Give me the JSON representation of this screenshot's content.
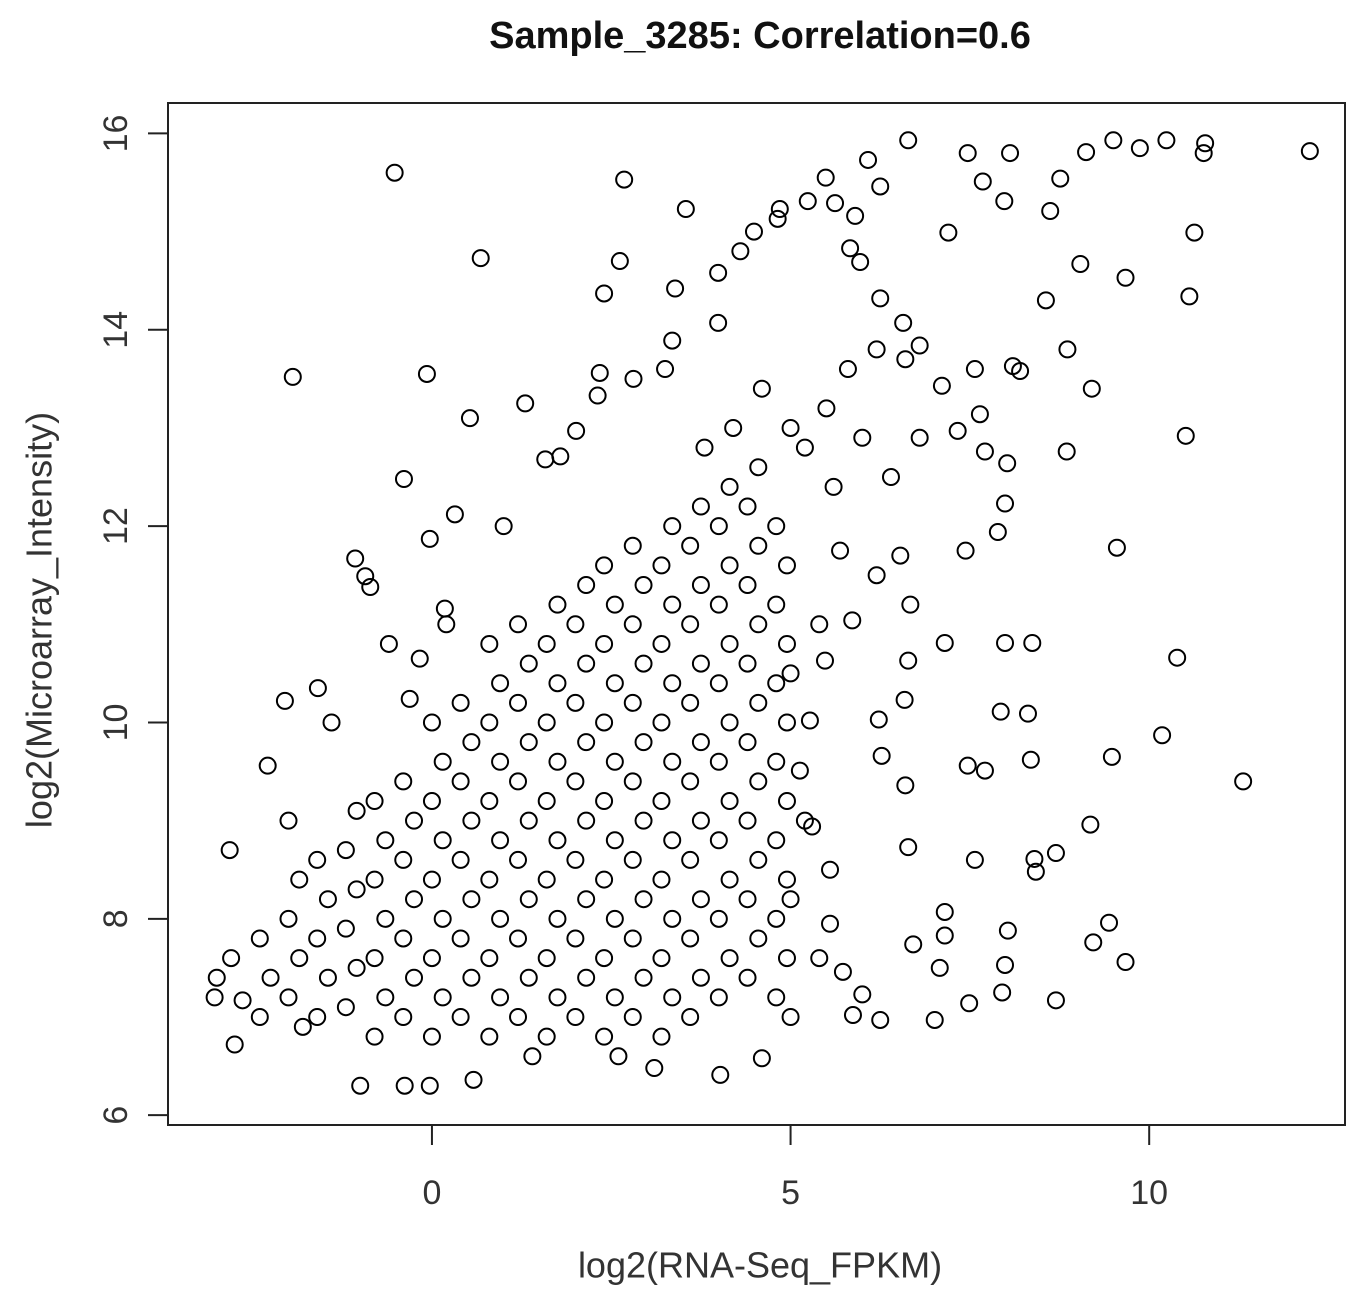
{
  "chart_data": {
    "type": "scatter",
    "title": "Sample_3285: Correlation=0.6",
    "x_label": "log2(RNA-Seq_FPKM)",
    "y_label": "log2(Microarray_Intensity)",
    "xlim": [
      -3.68,
      12.73
    ],
    "ylim": [
      5.9,
      16.31
    ],
    "xticks": [
      0,
      5,
      10
    ],
    "yticks": [
      6,
      8,
      10,
      12,
      14,
      16
    ],
    "color": "#000000",
    "x": [
      -0.52,
      0.68,
      -1.94,
      -0.07,
      2.68,
      3.54,
      2.62,
      2.4,
      0.53,
      1.3,
      -0.39,
      0.32,
      12.24,
      11.31,
      10.18,
      10.39,
      10.51,
      9.55,
      9.48,
      9.18,
      8.7,
      9.44,
      9.67,
      9.22,
      8.7,
      8.85,
      8.86,
      9.2,
      9.67,
      10.63,
      10.56,
      10.76,
      10.78,
      10.24,
      9.87,
      9.5,
      9.12,
      9.04,
      8.4,
      8.42,
      8.35,
      8.31,
      8.37,
      7.99,
      7.93,
      7.47,
      7.15,
      7.44,
      7.57,
      7.71,
      7.15,
      7.15,
      7.08,
      7.01,
      7.49,
      7.95,
      7.99,
      8.03,
      6.6,
      6.64,
      6.71,
      6.27,
      6.23,
      6.59,
      6.64,
      6.67,
      5.87,
      7.98,
      8.06,
      7.47,
      7.99,
      8.02,
      7.89,
      7.71,
      7.64,
      7.57,
      8.1,
      8.2,
      8.56,
      8.62,
      8.76,
      7.68,
      7.2,
      6.64,
      6.08,
      6.25,
      5.62,
      5.49,
      5.24,
      4.85,
      4.82,
      4.49,
      4.3,
      3.99,
      3.99,
      3.39,
      3.35,
      3.25,
      2.81,
      2.34,
      2.31,
      2.01,
      1.79,
      1.58,
      5.9,
      5.83,
      5.97,
      6.25,
      6.57,
      6.8,
      7.11,
      7.33,
      6.53,
      5.69,
      5.86,
      5.48,
      5.27,
      5.13,
      5.3,
      5.55,
      5.55,
      5.73,
      6.0,
      6.25,
      4.6,
      4.02,
      3.1,
      0.58,
      -1.0,
      -0.38,
      -0.03,
      -2.82,
      -2.64,
      -3.03,
      -2.75,
      -2.29,
      -2.05,
      -1.59,
      -1.07,
      -0.93,
      -0.86,
      -0.31,
      -0.17,
      -0.03,
      0.18,
      5.5,
      5.8,
      6.2,
      6.6,
      5.2,
      5.6,
      6.0,
      6.4,
      5.0,
      4.6,
      4.2,
      3.8,
      6.8,
      6.2,
      5.4,
      5.0,
      5.2,
      5.0,
      5.4,
      5.0,
      1.0,
      0.2,
      -0.6,
      -1.4,
      -2.0,
      -2.8,
      -3.0,
      2.6,
      1.4,
      -1.8,
      -2.4,
      -2.25,
      -2.4,
      -2.0,
      -1.85,
      -2.0,
      -1.85,
      -1.6,
      -1.45,
      -1.6,
      -1.45,
      -1.6,
      -1.2,
      -1.05,
      -1.2,
      -1.05,
      -1.2,
      -1.05,
      -0.8,
      -0.65,
      -0.8,
      -0.65,
      -0.8,
      -0.65,
      -0.8,
      -0.4,
      -0.25,
      -0.4,
      -0.25,
      -0.4,
      -0.25,
      -0.4,
      0,
      0.15,
      0,
      0.15,
      0,
      0.15,
      0,
      0.15,
      0,
      0.4,
      0.55,
      0.4,
      0.55,
      0.4,
      0.55,
      0.4,
      0.55,
      0.4,
      0.8,
      0.95,
      0.8,
      0.95,
      0.8,
      0.95,
      0.8,
      0.95,
      0.8,
      0.95,
      0.8,
      1.2,
      1.35,
      1.2,
      1.35,
      1.2,
      1.35,
      1.2,
      1.35,
      1.2,
      1.35,
      1.2,
      1.6,
      1.75,
      1.6,
      1.75,
      1.6,
      1.75,
      1.6,
      1.75,
      1.6,
      1.75,
      1.6,
      1.75,
      2.0,
      2.15,
      2.0,
      2.15,
      2.0,
      2.15,
      2.0,
      2.15,
      2.0,
      2.15,
      2.0,
      2.15,
      2.4,
      2.55,
      2.4,
      2.55,
      2.4,
      2.55,
      2.4,
      2.55,
      2.4,
      2.55,
      2.4,
      2.55,
      2.4,
      2.8,
      2.95,
      2.8,
      2.95,
      2.8,
      2.95,
      2.8,
      2.95,
      2.8,
      2.95,
      2.8,
      2.95,
      2.8,
      3.2,
      3.35,
      3.2,
      3.35,
      3.2,
      3.35,
      3.2,
      3.35,
      3.2,
      3.35,
      3.2,
      3.35,
      3.2,
      3.35,
      3.6,
      3.75,
      3.6,
      3.75,
      3.6,
      3.75,
      3.6,
      3.75,
      3.6,
      3.75,
      3.6,
      3.75,
      3.6,
      3.75,
      4.0,
      4.15,
      4.0,
      4.15,
      4.0,
      4.15,
      4.0,
      4.15,
      4.0,
      4.15,
      4.0,
      4.15,
      4.0,
      4.15,
      4.4,
      4.55,
      4.4,
      4.55,
      4.4,
      4.55,
      4.4,
      4.55,
      4.4,
      4.55,
      4.4,
      4.55,
      4.4,
      4.55,
      4.8,
      4.95,
      4.8,
      4.95,
      4.8,
      4.95,
      4.8,
      4.95,
      4.8,
      4.95,
      4.8,
      4.95,
      4.8
    ],
    "values": [
      15.6,
      14.73,
      13.52,
      13.55,
      15.53,
      15.23,
      14.7,
      14.37,
      13.1,
      13.25,
      12.48,
      12.12,
      15.82,
      9.4,
      9.87,
      10.66,
      12.92,
      11.78,
      9.65,
      8.96,
      8.67,
      7.96,
      7.56,
      7.76,
      7.17,
      12.76,
      13.8,
      13.4,
      14.53,
      14.99,
      14.34,
      15.8,
      15.9,
      15.93,
      15.85,
      15.93,
      15.81,
      14.67,
      8.61,
      8.48,
      9.62,
      10.09,
      10.81,
      10.81,
      10.11,
      9.56,
      10.81,
      11.75,
      8.6,
      9.51,
      8.07,
      7.83,
      7.5,
      6.97,
      7.14,
      7.25,
      7.53,
      7.88,
      9.36,
      8.73,
      7.74,
      9.66,
      10.03,
      10.23,
      10.63,
      11.2,
      7.02,
      15.31,
      15.8,
      15.8,
      12.23,
      12.64,
      11.94,
      12.76,
      13.14,
      13.6,
      13.63,
      13.58,
      14.3,
      15.21,
      15.54,
      15.51,
      14.99,
      15.93,
      15.73,
      15.46,
      15.29,
      15.55,
      15.31,
      15.23,
      15.13,
      15.0,
      14.8,
      14.58,
      14.07,
      14.42,
      13.89,
      13.6,
      13.5,
      13.56,
      13.33,
      12.97,
      12.71,
      12.68,
      15.16,
      14.83,
      14.69,
      14.32,
      14.07,
      13.84,
      13.43,
      12.97,
      11.7,
      11.75,
      11.04,
      10.63,
      10.02,
      9.51,
      8.94,
      8.5,
      7.95,
      7.46,
      7.23,
      6.97,
      6.58,
      6.41,
      6.48,
      6.36,
      6.3,
      6.3,
      6.3,
      8.7,
      7.17,
      7.2,
      6.72,
      9.56,
      10.22,
      10.35,
      11.67,
      11.49,
      11.38,
      10.24,
      10.65,
      11.87,
      11.16,
      13.2,
      13.6,
      13.8,
      13.7,
      12.8,
      12.4,
      12.9,
      12.5,
      13.0,
      13.4,
      13.0,
      12.8,
      12.9,
      11.5,
      11.0,
      10.5,
      9.0,
      8.2,
      7.6,
      7.0,
      12.0,
      11.0,
      10.8,
      10.0,
      9.0,
      7.6,
      7.4,
      6.6,
      6.6,
      6.9,
      7.0,
      7.4,
      7.8,
      7.2,
      7.6,
      8.0,
      8.4,
      7.0,
      7.4,
      7.8,
      8.2,
      8.6,
      7.1,
      7.5,
      7.9,
      8.3,
      8.7,
      9.1,
      6.8,
      7.2,
      7.6,
      8.0,
      8.4,
      8.8,
      9.2,
      7.0,
      7.4,
      7.8,
      8.2,
      8.6,
      9.0,
      9.4,
      6.8,
      7.2,
      7.6,
      8.0,
      8.4,
      8.8,
      9.2,
      9.6,
      10.0,
      7.0,
      7.4,
      7.8,
      8.2,
      8.6,
      9.0,
      9.4,
      9.8,
      10.2,
      6.8,
      7.2,
      7.6,
      8.0,
      8.4,
      8.8,
      9.2,
      9.6,
      10.0,
      10.4,
      10.8,
      7.0,
      7.4,
      7.8,
      8.2,
      8.6,
      9.0,
      9.4,
      9.8,
      10.2,
      10.6,
      11.0,
      6.8,
      7.2,
      7.6,
      8.0,
      8.4,
      8.8,
      9.2,
      9.6,
      10.0,
      10.4,
      10.8,
      11.2,
      7.0,
      7.4,
      7.8,
      8.2,
      8.6,
      9.0,
      9.4,
      9.8,
      10.2,
      10.6,
      11.0,
      11.4,
      6.8,
      7.2,
      7.6,
      8.0,
      8.4,
      8.8,
      9.2,
      9.6,
      10.0,
      10.4,
      10.8,
      11.2,
      11.6,
      7.0,
      7.4,
      7.8,
      8.2,
      8.6,
      9.0,
      9.4,
      9.8,
      10.2,
      10.6,
      11.0,
      11.4,
      11.8,
      6.8,
      7.2,
      7.6,
      8.0,
      8.4,
      8.8,
      9.2,
      9.6,
      10.0,
      10.4,
      10.8,
      11.2,
      11.6,
      12.0,
      7.0,
      7.4,
      7.8,
      8.2,
      8.6,
      9.0,
      9.4,
      9.8,
      10.2,
      10.6,
      11.0,
      11.4,
      11.8,
      12.2,
      7.2,
      7.6,
      8.0,
      8.4,
      8.8,
      9.2,
      9.6,
      10.0,
      10.4,
      10.8,
      11.2,
      11.6,
      12.0,
      12.4,
      7.4,
      7.8,
      8.2,
      8.6,
      9.0,
      9.4,
      9.8,
      10.2,
      10.6,
      11.0,
      11.4,
      11.8,
      12.2,
      12.6,
      7.2,
      7.6,
      8.0,
      8.4,
      8.8,
      9.2,
      9.6,
      10.0,
      10.4,
      10.8,
      11.2,
      11.6,
      12.0
    ]
  }
}
